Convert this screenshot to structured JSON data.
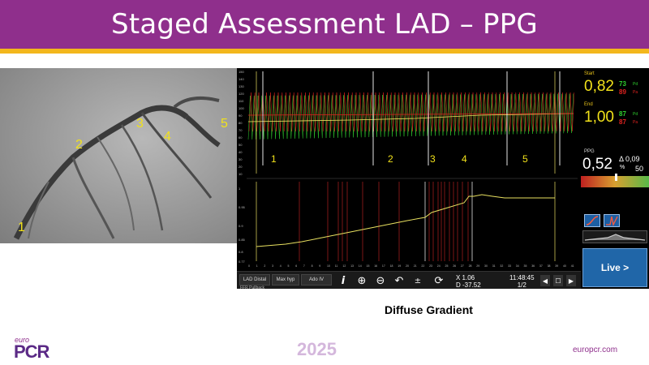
{
  "slide": {
    "title": "Staged Assessment LAD – PPG",
    "caption": "Diffuse Gradient",
    "footer": {
      "logo_small": "euro",
      "logo_big": "PCR",
      "year": "2025",
      "site": "europcr.com"
    }
  },
  "angiogram": {
    "labels": [
      "1",
      "2",
      "3",
      "4",
      "5"
    ]
  },
  "pullback": {
    "markers": [
      "1",
      "2",
      "3",
      "4",
      "5"
    ],
    "top_axis_ticks": [
      "150",
      "140",
      "130",
      "120",
      "110",
      "100",
      "90",
      "80",
      "70",
      "60",
      "50",
      "40",
      "30",
      "20",
      "10"
    ],
    "bottom_axis_ticks": [
      "1",
      "0.95",
      "0.9",
      "0.85",
      "0.8",
      "0.77"
    ],
    "x_ticks": [
      "0",
      "1",
      "2",
      "3",
      "4",
      "5",
      "6",
      "7",
      "8",
      "9",
      "10",
      "11",
      "12",
      "13",
      "14",
      "15",
      "16",
      "17",
      "18",
      "19",
      "20",
      "21",
      "22",
      "23",
      "24",
      "25",
      "26",
      "27",
      "28",
      "29",
      "30",
      "31",
      "32",
      "33",
      "34",
      "35",
      "36",
      "37",
      "38",
      "39",
      "40",
      "41"
    ]
  },
  "toolbar": {
    "btn1": "LAD Distal",
    "btn2": "Max hyp",
    "btn3": "Ado IV",
    "sub": "FFR Pullback",
    "x_readout": "X 1.06",
    "d_readout": "D -37.52",
    "time": "11:48:45",
    "page": "1/2",
    "icons": [
      "info-icon",
      "zoom-in-icon",
      "zoom-out-icon",
      "undo-icon",
      "plus-minus-icon",
      "redo-icon",
      "prev-icon",
      "lock-icon",
      "next-icon"
    ]
  },
  "side_panel": {
    "start_label": "Start",
    "start_value": "0,82",
    "start_pa": "73",
    "start_pd": "89",
    "end_label": "End",
    "end_value": "1,00",
    "end_pa": "87",
    "end_pd": "87",
    "pd_tag": "Pd",
    "pa_tag": "Pa",
    "ppg_label": "PPG",
    "ppg_value": "0,52",
    "ppg_unit": "%",
    "delta_value": "Δ 0,09",
    "delta_sub": "50",
    "live_label": "Live >"
  },
  "colors": {
    "title_bg": "#8f2f8c",
    "accent": "#f3b71c",
    "trace_green": "#2fd12f",
    "trace_red": "#e0221f",
    "trace_yellow": "#e8e060"
  }
}
